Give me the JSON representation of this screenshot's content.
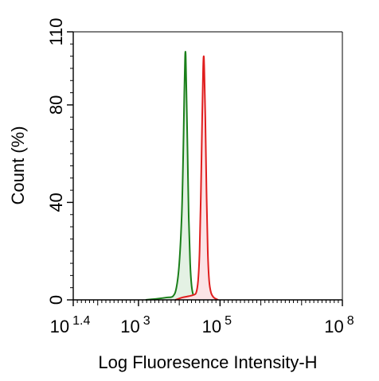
{
  "chart_data": {
    "type": "area",
    "xlabel": "Log Fluoresence Intensity-H",
    "ylabel": "Count  (%)",
    "x_scale": "log",
    "x_ticks": [
      {
        "value": 25.12,
        "base": "10",
        "exp": "1.4"
      },
      {
        "value": 1000,
        "base": "10",
        "exp": "3"
      },
      {
        "value": 100000,
        "base": "10",
        "exp": "5"
      },
      {
        "value": 100000000,
        "base": "10",
        "exp": "8"
      }
    ],
    "xlim": [
      25.12,
      100000000
    ],
    "y_ticks": [
      {
        "value": 0,
        "label": "0"
      },
      {
        "value": 40,
        "label": "40"
      },
      {
        "value": 80,
        "label": "80"
      },
      {
        "value": 110,
        "label": "110"
      }
    ],
    "ylim": [
      0,
      110
    ],
    "grid": false,
    "series": [
      {
        "color": "#1a7f1a",
        "fill": "#e4f1e4",
        "points": [
          [
            1500,
            0
          ],
          [
            3000,
            0.5
          ],
          [
            5000,
            1
          ],
          [
            7000,
            1.5
          ],
          [
            8500,
            5
          ],
          [
            10000,
            15
          ],
          [
            11500,
            35
          ],
          [
            12500,
            60
          ],
          [
            13300,
            85
          ],
          [
            13900,
            100
          ],
          [
            14400,
            100
          ],
          [
            15000,
            85
          ],
          [
            16000,
            60
          ],
          [
            17000,
            35
          ],
          [
            18500,
            15
          ],
          [
            20000,
            6
          ],
          [
            22000,
            2
          ],
          [
            25000,
            0.5
          ],
          [
            32000,
            0
          ]
        ]
      },
      {
        "color": "#e01e1e",
        "fill": "#fbe3e6",
        "points": [
          [
            8000,
            0
          ],
          [
            12000,
            1
          ],
          [
            17000,
            1.5
          ],
          [
            22000,
            2
          ],
          [
            26000,
            3
          ],
          [
            29000,
            8
          ],
          [
            31500,
            20
          ],
          [
            34000,
            45
          ],
          [
            36500,
            75
          ],
          [
            38500,
            95
          ],
          [
            39800,
            100
          ],
          [
            41000,
            95
          ],
          [
            43500,
            75
          ],
          [
            46500,
            45
          ],
          [
            50000,
            20
          ],
          [
            54000,
            8
          ],
          [
            60000,
            3
          ],
          [
            70000,
            1
          ],
          [
            90000,
            0
          ]
        ]
      }
    ]
  }
}
